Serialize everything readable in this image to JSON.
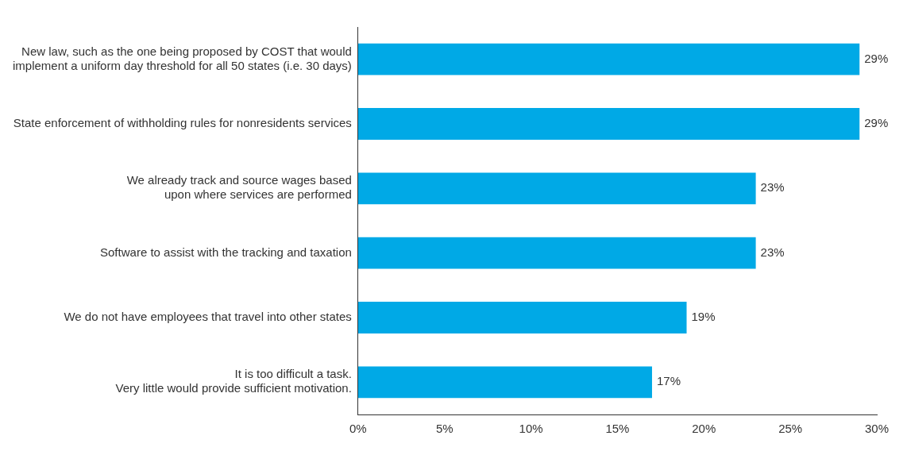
{
  "chart_data": {
    "type": "bar",
    "orientation": "horizontal",
    "categories": [
      "New law, such as the one being proposed by COST that would\nimplement a uniform day threshold for all 50 states (i.e. 30 days)",
      "State enforcement of withholding rules for nonresidents services",
      "We already track and source wages based\nupon where services are performed",
      "Software to assist with the tracking and taxation",
      "We do not have employees that travel into other states",
      "It is too difficult a task.\nVery little would provide sufficient motivation."
    ],
    "values": [
      29,
      29,
      23,
      23,
      19,
      17
    ],
    "value_labels": [
      "29%",
      "29%",
      "23%",
      "23%",
      "19%",
      "17%"
    ],
    "color": "#00a9e6",
    "xlim": [
      0,
      30
    ],
    "xticks": [
      {
        "value": 0,
        "label": "0%"
      },
      {
        "value": 5,
        "label": "5%"
      },
      {
        "value": 10,
        "label": "10%"
      },
      {
        "value": 15,
        "label": "15%"
      },
      {
        "value": 20,
        "label": "20%"
      },
      {
        "value": 25,
        "label": "25%"
      },
      {
        "value": 30,
        "label": "30%"
      }
    ],
    "grid": false,
    "legend": false
  }
}
